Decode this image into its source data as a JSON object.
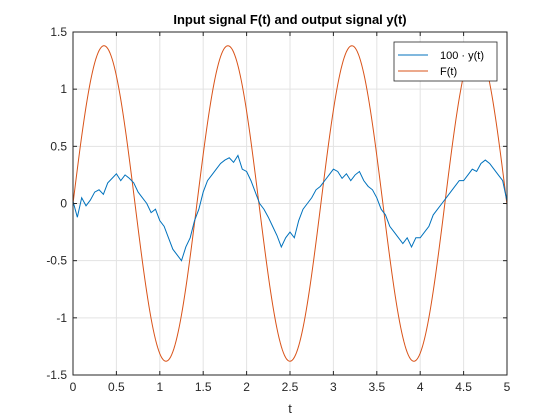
{
  "chart_data": {
    "type": "line",
    "title": "Input signal F(t) and output signal y(t)",
    "xlabel": "t",
    "ylabel": "",
    "xlim": [
      0,
      5
    ],
    "ylim": [
      -1.5,
      1.5
    ],
    "xticks": [
      0,
      0.5,
      1,
      1.5,
      2,
      2.5,
      3,
      3.5,
      4,
      4.5,
      5
    ],
    "xtick_labels": [
      "0",
      "0.5",
      "1",
      "1.5",
      "2",
      "2.5",
      "3",
      "3.5",
      "4",
      "4.5",
      "5"
    ],
    "yticks": [
      -1.5,
      -1,
      -0.5,
      0,
      0.5,
      1,
      1.5
    ],
    "ytick_labels": [
      "-1.5",
      "-1",
      "-0.5",
      "0",
      "0.5",
      "1",
      "1.5"
    ],
    "grid": true,
    "legend_position": "top-right",
    "series": [
      {
        "name": "100 · y(t)",
        "color": "#0072BD",
        "x": [
          0,
          0.05,
          0.1,
          0.15,
          0.2,
          0.25,
          0.3,
          0.35,
          0.4,
          0.45,
          0.5,
          0.55,
          0.6,
          0.65,
          0.7,
          0.75,
          0.8,
          0.85,
          0.9,
          0.95,
          1,
          1.05,
          1.1,
          1.15,
          1.2,
          1.25,
          1.3,
          1.35,
          1.4,
          1.45,
          1.5,
          1.55,
          1.6,
          1.65,
          1.7,
          1.75,
          1.8,
          1.85,
          1.9,
          1.95,
          2,
          2.05,
          2.1,
          2.15,
          2.2,
          2.25,
          2.3,
          2.35,
          2.4,
          2.45,
          2.5,
          2.55,
          2.6,
          2.65,
          2.7,
          2.75,
          2.8,
          2.85,
          2.9,
          2.95,
          3,
          3.05,
          3.1,
          3.15,
          3.2,
          3.25,
          3.3,
          3.35,
          3.4,
          3.45,
          3.5,
          3.55,
          3.6,
          3.65,
          3.7,
          3.75,
          3.8,
          3.85,
          3.9,
          3.95,
          4,
          4.05,
          4.1,
          4.15,
          4.2,
          4.25,
          4.3,
          4.35,
          4.4,
          4.45,
          4.5,
          4.55,
          4.6,
          4.65,
          4.7,
          4.75,
          4.8,
          4.85,
          4.9,
          4.95,
          5
        ],
        "values": [
          0.02,
          -0.12,
          0.05,
          -0.02,
          0.03,
          0.1,
          0.12,
          0.08,
          0.18,
          0.22,
          0.26,
          0.2,
          0.25,
          0.22,
          0.18,
          0.1,
          0.05,
          0.0,
          -0.08,
          -0.05,
          -0.15,
          -0.2,
          -0.3,
          -0.4,
          -0.45,
          -0.5,
          -0.38,
          -0.3,
          -0.15,
          -0.05,
          0.1,
          0.2,
          0.25,
          0.3,
          0.35,
          0.38,
          0.4,
          0.36,
          0.42,
          0.3,
          0.28,
          0.2,
          0.1,
          0.0,
          -0.05,
          -0.12,
          -0.2,
          -0.28,
          -0.38,
          -0.3,
          -0.25,
          -0.3,
          -0.15,
          -0.05,
          0.0,
          0.05,
          0.12,
          0.15,
          0.2,
          0.25,
          0.3,
          0.28,
          0.22,
          0.26,
          0.2,
          0.25,
          0.28,
          0.2,
          0.15,
          0.12,
          0.05,
          -0.05,
          -0.1,
          -0.2,
          -0.25,
          -0.3,
          -0.35,
          -0.3,
          -0.38,
          -0.3,
          -0.3,
          -0.25,
          -0.2,
          -0.1,
          -0.05,
          0.0,
          0.05,
          0.1,
          0.15,
          0.2,
          0.2,
          0.25,
          0.3,
          0.28,
          0.35,
          0.38,
          0.35,
          0.3,
          0.25,
          0.2,
          0.02
        ]
      },
      {
        "name": "F(t)",
        "color": "#D95319",
        "function": "1.38*sin(4.4*t)",
        "amplitude": 1.38,
        "angular_frequency": 4.4
      }
    ]
  }
}
